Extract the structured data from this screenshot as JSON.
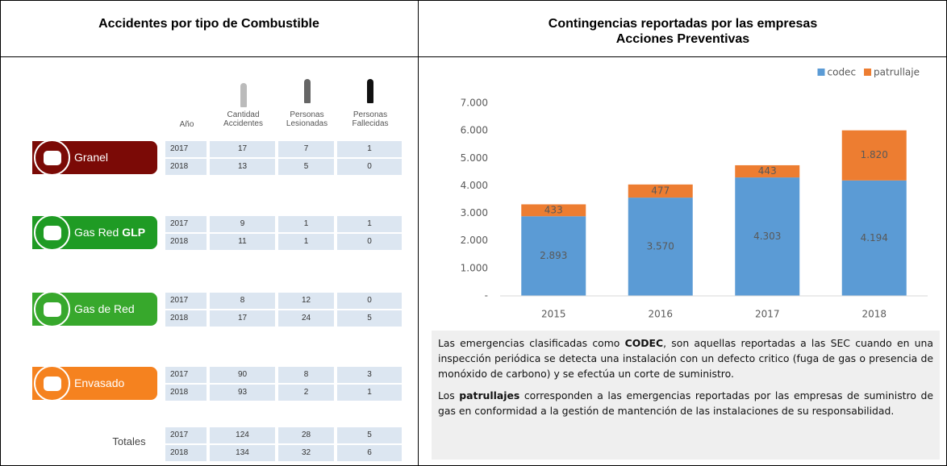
{
  "left": {
    "title": "Accidentes por tipo de Combustible",
    "columns": [
      "Año",
      "Cantidad Accidentes",
      "Personas Lesionadas",
      "Personas Fallecidas"
    ],
    "groups": [
      {
        "label_parts": [
          {
            "text": "Granel",
            "bold": false
          }
        ],
        "color": "#7b0a06",
        "rows": [
          [
            "2017",
            "17",
            "7",
            "1"
          ],
          [
            "2018",
            "13",
            "5",
            "0"
          ]
        ]
      },
      {
        "label_parts": [
          {
            "text": "Gas Red",
            "bold": false
          },
          {
            "text": "GLP",
            "bold": true
          }
        ],
        "color": "#1f9b24",
        "rows": [
          [
            "2017",
            "9",
            "1",
            "1"
          ],
          [
            "2018",
            "11",
            "1",
            "0"
          ]
        ]
      },
      {
        "label_parts": [
          {
            "text": "Gas de Red",
            "bold": false
          }
        ],
        "color": "#37a82c",
        "rows": [
          [
            "2017",
            "8",
            "12",
            "0"
          ],
          [
            "2018",
            "17",
            "24",
            "5"
          ]
        ]
      },
      {
        "label_parts": [
          {
            "text": "Envasado",
            "bold": false
          }
        ],
        "color": "#f5821f",
        "rows": [
          [
            "2017",
            "90",
            "8",
            "3"
          ],
          [
            "2018",
            "93",
            "2",
            "1"
          ]
        ]
      }
    ],
    "totals": {
      "label": "Totales",
      "rows": [
        [
          "2017",
          "124",
          "28",
          "5"
        ],
        [
          "2018",
          "134",
          "32",
          "6"
        ]
      ]
    }
  },
  "right": {
    "title_lines": [
      "Contingencias reportadas por las empresas",
      "Acciones Preventivas"
    ],
    "paragraphs": [
      [
        {
          "text": "Las emergencias clasificadas como ",
          "bold": false
        },
        {
          "text": "CODEC",
          "bold": true
        },
        {
          "text": ", son aquellas reportadas a las SEC cuando en una inspección periódica se detecta una instalación con un defecto critico (fuga de gas o presencia de monóxido de carbono) y se efectúa un corte de suministro.",
          "bold": false
        }
      ],
      [
        {
          "text": "Los ",
          "bold": false
        },
        {
          "text": "patrullajes",
          "bold": true
        },
        {
          "text": " corresponden a las emergencias reportadas por las empresas de suministro de gas en conformidad a la gestión de mantención de las instalaciones de su responsabilidad.",
          "bold": false
        }
      ]
    ]
  },
  "chart_data": {
    "type": "stacked_bar",
    "categories": [
      "2015",
      "2016",
      "2017",
      "2018"
    ],
    "series": [
      {
        "name": "codec",
        "color": "#5b9bd5",
        "values": [
          2893,
          3570,
          4303,
          4194
        ],
        "value_labels": [
          "2.893",
          "3.570",
          "4.303",
          "4.194"
        ]
      },
      {
        "name": "patrullaje",
        "color": "#ed7d31",
        "values": [
          433,
          477,
          443,
          1820
        ],
        "value_labels": [
          "433",
          "477",
          "443",
          "1.820"
        ]
      }
    ],
    "ylim": [
      0,
      7000
    ],
    "yticks": [
      {
        "value": 0,
        "label": "-"
      },
      {
        "value": 1000,
        "label": "1.000"
      },
      {
        "value": 2000,
        "label": "2.000"
      },
      {
        "value": 3000,
        "label": "3.000"
      },
      {
        "value": 4000,
        "label": "4.000"
      },
      {
        "value": 5000,
        "label": "5.000"
      },
      {
        "value": 6000,
        "label": "6.000"
      },
      {
        "value": 7000,
        "label": "7.000"
      }
    ],
    "grid": false,
    "legend": "top-right"
  }
}
